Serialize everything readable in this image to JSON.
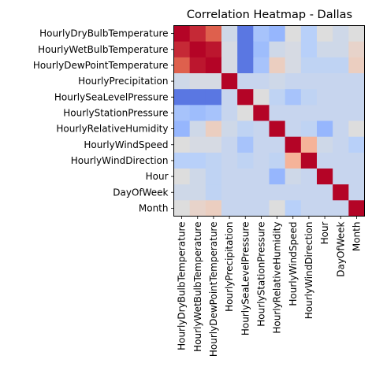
{
  "chart_data": {
    "type": "heatmap",
    "title": "Correlation Heatmap - Dallas",
    "xlabel": "",
    "ylabel": "",
    "colormap": "coolwarm",
    "vmin": -1,
    "vmax": 1,
    "grid": false,
    "categories": [
      "HourlyDryBulbTemperature",
      "HourlyWetBulbTemperature",
      "HourlyDewPointTemperature",
      "HourlyPrecipitation",
      "HourlySeaLevelPressure",
      "HourlyStationPressure",
      "HourlyRelativeHumidity",
      "HourlyWindSpeed",
      "HourlyWindDirection",
      "Hour",
      "DayOfWeek",
      "Month"
    ],
    "matrix": [
      [
        1.0,
        0.9,
        0.75,
        -0.1,
        -0.8,
        -0.35,
        -0.45,
        0.0,
        -0.25,
        0.0,
        -0.1,
        0.0
      ],
      [
        0.9,
        1.0,
        0.95,
        -0.05,
        -0.8,
        -0.4,
        -0.1,
        -0.05,
        -0.25,
        -0.1,
        -0.1,
        0.1
      ],
      [
        0.75,
        0.95,
        1.0,
        -0.05,
        -0.8,
        -0.35,
        0.15,
        -0.05,
        -0.2,
        -0.2,
        -0.2,
        0.15
      ],
      [
        -0.1,
        -0.05,
        -0.05,
        1.0,
        -0.15,
        -0.15,
        -0.1,
        -0.15,
        -0.15,
        -0.15,
        -0.15,
        -0.15
      ],
      [
        -0.8,
        -0.8,
        -0.8,
        -0.15,
        1.0,
        0.0,
        -0.2,
        -0.35,
        -0.2,
        -0.15,
        -0.15,
        -0.15
      ],
      [
        -0.35,
        -0.4,
        -0.35,
        -0.15,
        0.0,
        1.0,
        -0.15,
        -0.15,
        -0.15,
        -0.15,
        -0.15,
        -0.15
      ],
      [
        -0.45,
        -0.1,
        0.15,
        -0.1,
        -0.2,
        -0.15,
        1.0,
        -0.15,
        -0.2,
        -0.45,
        -0.15,
        0.0
      ],
      [
        0.0,
        -0.05,
        -0.05,
        -0.15,
        -0.35,
        -0.15,
        -0.15,
        1.0,
        0.35,
        -0.1,
        -0.15,
        -0.25
      ],
      [
        -0.25,
        -0.25,
        -0.2,
        -0.15,
        -0.2,
        -0.15,
        -0.2,
        0.35,
        1.0,
        -0.15,
        -0.15,
        -0.15
      ],
      [
        0.0,
        -0.1,
        -0.2,
        -0.15,
        -0.15,
        -0.15,
        -0.45,
        -0.1,
        -0.15,
        1.0,
        -0.15,
        -0.15
      ],
      [
        -0.1,
        -0.1,
        -0.2,
        -0.15,
        -0.15,
        -0.15,
        -0.15,
        -0.15,
        -0.15,
        -0.15,
        1.0,
        -0.15
      ],
      [
        0.0,
        0.1,
        0.15,
        -0.15,
        -0.15,
        -0.15,
        0.0,
        -0.25,
        -0.15,
        -0.15,
        -0.15,
        1.0
      ]
    ]
  }
}
